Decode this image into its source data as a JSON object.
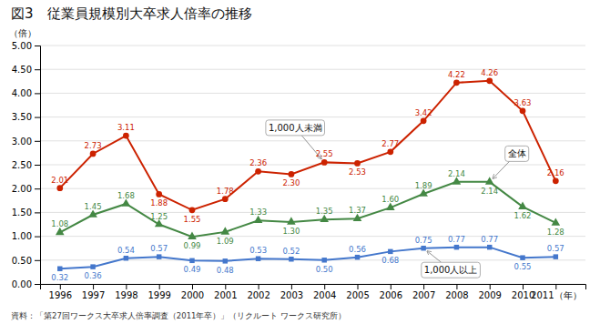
{
  "chart_data": {
    "type": "line",
    "title": "図3　従業員規模別大卒求人倍率の推移",
    "ylabel": "（倍）",
    "annotations": [
      "資料：「第27回ワークス大卒求人倍率調査（2011年卒）」（リクルート ワークス研究所）"
    ],
    "x": [
      1996,
      1997,
      1998,
      1999,
      2000,
      2001,
      2002,
      2003,
      2004,
      2005,
      2006,
      2007,
      2008,
      2009,
      2010,
      2011
    ],
    "xlim": [
      1995.4,
      2011.9
    ],
    "xticks": [
      1996,
      1997,
      1998,
      1999,
      2000,
      2001,
      2002,
      2003,
      2004,
      2005,
      2006,
      2007,
      2008,
      2009,
      2010,
      {
        "value": 2011,
        "label": "2011（年）"
      }
    ],
    "ylim": [
      0.0,
      5.0
    ],
    "yticks": [
      {
        "value": 0.0,
        "label": "0.00"
      },
      {
        "value": 0.5,
        "label": "0.50"
      },
      {
        "value": 1.0,
        "label": "1.00"
      },
      {
        "value": 1.5,
        "label": "1.50"
      },
      {
        "value": 2.0,
        "label": "2.00"
      },
      {
        "value": 2.5,
        "label": "2.50"
      },
      {
        "value": 3.0,
        "label": "3.00"
      },
      {
        "value": 3.5,
        "label": "3.50"
      },
      {
        "value": 4.0,
        "label": "4.00"
      },
      {
        "value": 4.5,
        "label": "4.50"
      },
      {
        "value": 5.0,
        "label": "5.00"
      }
    ],
    "grid": true,
    "data_labels": true,
    "series": [
      {
        "name": "1,000人未満",
        "color": "#cc2200",
        "marker": "circle",
        "values": [
          2.01,
          2.73,
          3.11,
          1.88,
          1.55,
          1.78,
          2.36,
          2.3,
          2.55,
          2.53,
          2.77,
          3.42,
          4.22,
          4.26,
          3.63,
          2.16
        ],
        "value_labels": [
          "2.01",
          "2.73",
          "3.11",
          "1.88",
          "1.55",
          "1.78",
          "2.36",
          "2.30",
          "2.55",
          "2.53",
          "2.77",
          "3.42",
          "4.22",
          "4.26",
          "3.63",
          "2.16"
        ]
      },
      {
        "name": "全体",
        "color": "#448844",
        "marker": "triangle",
        "values": [
          1.08,
          1.45,
          1.68,
          1.25,
          0.99,
          1.09,
          1.33,
          1.3,
          1.35,
          1.37,
          1.6,
          1.89,
          2.14,
          2.14,
          1.62,
          1.28
        ],
        "value_labels": [
          "1.08",
          "1.45",
          "1.68",
          "1.25",
          "0.99",
          "1.09",
          "1.33",
          "1.30",
          "1.35",
          "1.37",
          "1.60",
          "1.89",
          "2.14",
          "2.14",
          "1.62",
          "1.28"
        ]
      },
      {
        "name": "1,000人以上",
        "color": "#4477cc",
        "marker": "square",
        "values": [
          0.32,
          0.36,
          0.54,
          0.57,
          0.49,
          0.48,
          0.53,
          0.52,
          0.5,
          0.56,
          0.68,
          0.75,
          0.77,
          0.77,
          0.55,
          0.57
        ],
        "value_labels": [
          "0.32",
          "0.36",
          "0.54",
          "0.57",
          "0.49",
          "0.48",
          "0.53",
          "0.52",
          "0.50",
          "0.56",
          "0.68",
          "0.75",
          "0.77",
          "0.77",
          "0.55",
          "0.57"
        ]
      }
    ]
  }
}
